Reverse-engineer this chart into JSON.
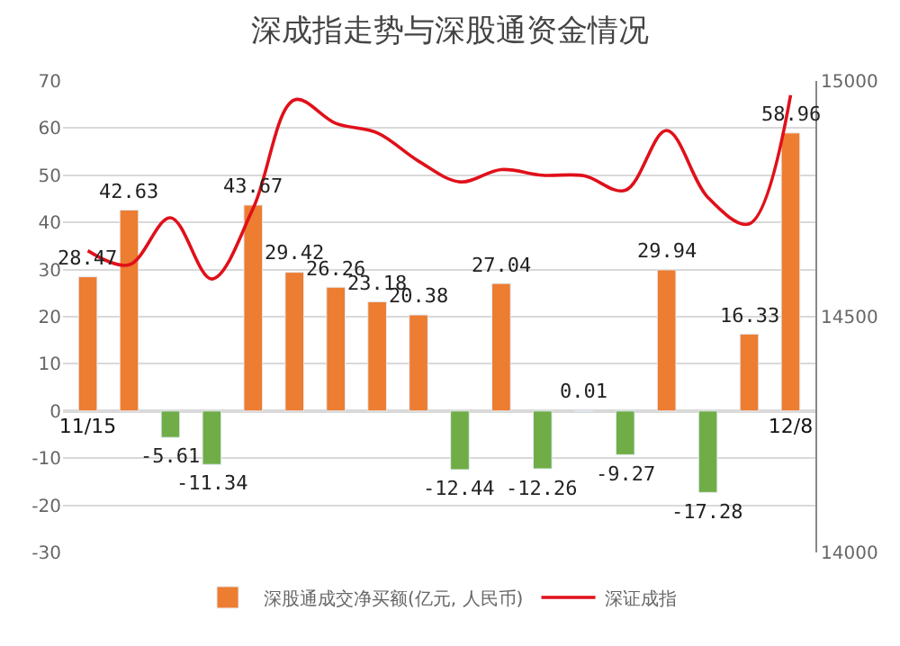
{
  "chart_data": {
    "type": "bar",
    "title": "深成指走势与深股通资金情况",
    "categories": [
      "11/15",
      null,
      null,
      null,
      null,
      null,
      null,
      null,
      null,
      null,
      null,
      null,
      null,
      null,
      null,
      null,
      null,
      "12/8"
    ],
    "series": [
      {
        "name": "深股通成交净买额(亿元, 人民币)",
        "value_labels": [
          "28.47",
          "42.63",
          "-5.61",
          "-11.34",
          "43.67",
          "29.42",
          "26.26",
          "23.18",
          "20.38",
          "-12.44",
          "27.04",
          "-12.26",
          "0.01",
          "-9.27",
          "29.94",
          "-17.28",
          "16.33",
          "58.96"
        ],
        "color": "#ed7d31",
        "colors": [
          "#ed7d31",
          "#ed7d31",
          "#70ad47",
          "#70ad47",
          "#ed7d31",
          "#ed7d31",
          "#ed7d31",
          "#ed7d31",
          "#ed7d31",
          "#70ad47",
          "#ed7d31",
          "#70ad47",
          "#ed7d31",
          "#70ad47",
          "#ed7d31",
          "#70ad47",
          "#ed7d31",
          "#ed7d31"
        ],
        "values": [
          28.47,
          42.63,
          -5.61,
          -11.34,
          43.67,
          29.42,
          26.26,
          23.18,
          20.38,
          -12.44,
          27.04,
          -12.26,
          0.01,
          -9.27,
          29.94,
          -17.28,
          16.33,
          58.96
        ]
      },
      {
        "name": "深证成指",
        "type": "line",
        "axis": "y2",
        "color": "#e0101a",
        "values": [
          14640,
          14610,
          14710,
          14580,
          14730,
          14960,
          14910,
          14890,
          14830,
          14786,
          14812,
          14800,
          14799,
          14768,
          14895,
          14753,
          14697,
          14970
        ]
      }
    ],
    "ylim": [
      -30,
      70
    ],
    "yticks": [
      -30,
      -20,
      -10,
      0,
      10,
      20,
      30,
      40,
      50,
      60,
      70
    ],
    "y2lim": [
      14000,
      15000
    ],
    "y2ticks": [
      14000,
      14500,
      15000
    ],
    "grid": "y",
    "legend": "bottom"
  }
}
